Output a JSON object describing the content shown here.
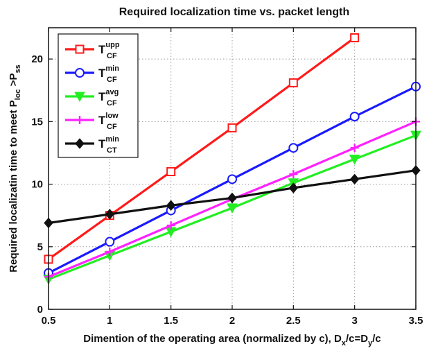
{
  "chart_data": {
    "type": "line",
    "title": "Required localization time vs. packet length",
    "xlabel": {
      "main": "Dimention of the operating area (normalized by c), D",
      "sub1": "x",
      "mid": "/c=D",
      "sub2": "y",
      "end": "/c"
    },
    "ylabel": {
      "main": "Required localizatin time to meet P",
      "sub1": "loc",
      "mid": " >P",
      "sub2": "ss"
    },
    "xlim": [
      0.5,
      3.5
    ],
    "ylim": [
      0,
      22.5
    ],
    "xticks": [
      "0.5",
      "1",
      "1.5",
      "2",
      "2.5",
      "3",
      "3.5"
    ],
    "yticks": [
      "0",
      "5",
      "10",
      "15",
      "20"
    ],
    "grid": true,
    "legend_position": "top-left",
    "x": [
      0.5,
      1,
      1.5,
      2,
      2.5,
      3,
      3.5
    ],
    "series": [
      {
        "name_base": "T",
        "name_sup": "upp",
        "name_sub": "CF",
        "color": "#ff1a1a",
        "marker": "square",
        "x": [
          0.5,
          1,
          1.5,
          2,
          2.5,
          3
        ],
        "values": [
          4.0,
          7.5,
          11.0,
          14.5,
          18.1,
          21.7
        ]
      },
      {
        "name_base": "T",
        "name_sup": "min",
        "name_sub": "CF",
        "color": "#1a1aff",
        "marker": "circle",
        "x": [
          0.5,
          1,
          1.5,
          2,
          2.5,
          3,
          3.5
        ],
        "values": [
          2.9,
          5.4,
          7.9,
          10.4,
          12.9,
          15.4,
          17.8
        ]
      },
      {
        "name_base": "T",
        "name_sup": "avg",
        "name_sub": "CF",
        "color": "#22ee22",
        "marker": "triangle-down",
        "x": [
          0.5,
          1,
          1.5,
          2,
          2.5,
          3,
          3.5
        ],
        "values": [
          2.4,
          4.3,
          6.2,
          8.1,
          10.1,
          12.0,
          13.9
        ]
      },
      {
        "name_base": "T",
        "name_sup": "low",
        "name_sub": "CF",
        "color": "#ff22ff",
        "marker": "plus",
        "x": [
          0.5,
          1,
          1.5,
          2,
          2.5,
          3,
          3.5
        ],
        "values": [
          2.6,
          4.6,
          6.7,
          8.8,
          10.8,
          12.9,
          15.0
        ]
      },
      {
        "name_base": "T",
        "name_sup": "min",
        "name_sub": "CT",
        "color": "#111111",
        "marker": "diamond",
        "x": [
          0.5,
          1,
          1.5,
          2,
          2.5,
          3,
          3.5
        ],
        "values": [
          6.9,
          7.6,
          8.3,
          8.9,
          9.7,
          10.4,
          11.1
        ]
      }
    ]
  }
}
